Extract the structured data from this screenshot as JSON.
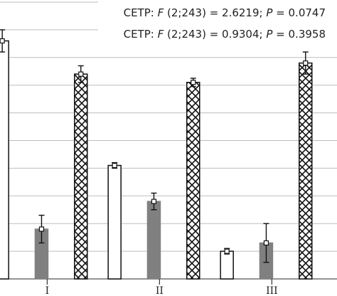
{
  "chart_data": {
    "type": "bar",
    "categories": [
      "I",
      "II",
      "III"
    ],
    "grid": true,
    "ylim": [
      0,
      10
    ],
    "annotations": [
      {
        "prefix": "CETP: ",
        "f_symbol": "F",
        "f_args": " (2;243) = 2.6219; ",
        "p_symbol": "P",
        "p_value": " = 0.0747"
      },
      {
        "prefix": "CETP: ",
        "f_symbol": "F",
        "f_args": " (2;243) = 0.9304; ",
        "p_symbol": "P",
        "p_value": " = 0.3958"
      }
    ],
    "series": [
      {
        "pattern": "white",
        "fill": "#ffffff",
        "values": [
          8.6,
          4.1,
          1.0
        ],
        "errors": [
          0.4,
          0.1,
          0.1
        ]
      },
      {
        "pattern": "gray",
        "fill": "#808080",
        "values": [
          1.8,
          2.8,
          1.3
        ],
        "errors": [
          0.5,
          0.3,
          0.7
        ]
      },
      {
        "pattern": "crosshatch",
        "fill": "#ffffff",
        "values": [
          7.4,
          7.1,
          7.8
        ],
        "errors": [
          0.3,
          0.15,
          0.4
        ]
      }
    ]
  }
}
